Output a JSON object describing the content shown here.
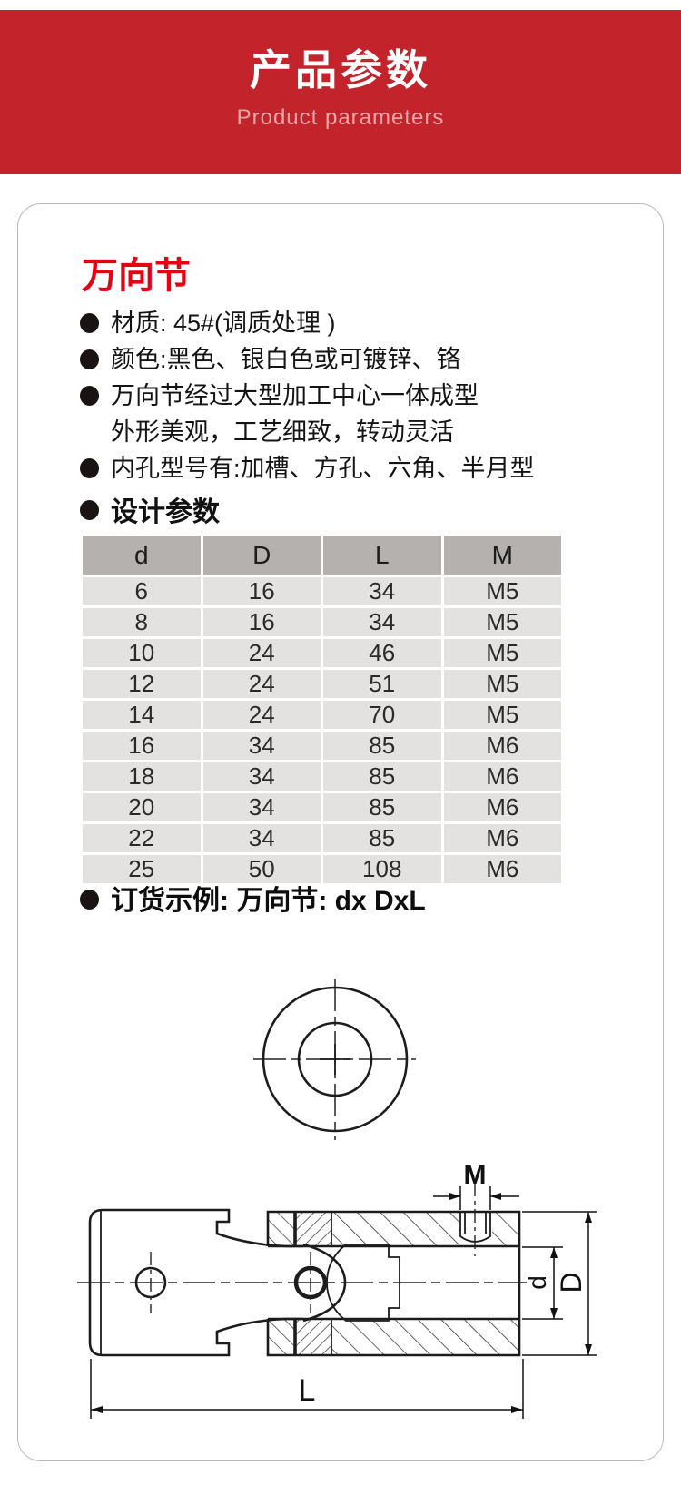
{
  "header": {
    "title": "产品参数",
    "subtitle": "Product parameters"
  },
  "card": {
    "title": "万向节",
    "features": [
      {
        "text": "材质: 45#(调质处理 )",
        "bullet": true
      },
      {
        "text": "颜色:黑色、银白色或可镀锌、铬",
        "bullet": true
      },
      {
        "text": "万向节经过大型加工中心一体成型",
        "bullet": true
      },
      {
        "text": "外形美观，工艺细致，转动灵活",
        "bullet": false
      },
      {
        "text": "内孔型号有:加槽、方孔、六角、半月型",
        "bullet": true
      }
    ],
    "design_heading": "设计参数",
    "table": {
      "headers": [
        "d",
        "D",
        "L",
        "M"
      ],
      "rows": [
        [
          "6",
          "16",
          "34",
          "M5"
        ],
        [
          "8",
          "16",
          "34",
          "M5"
        ],
        [
          "10",
          "24",
          "46",
          "M5"
        ],
        [
          "12",
          "24",
          "51",
          "M5"
        ],
        [
          "14",
          "24",
          "70",
          "M5"
        ],
        [
          "16",
          "34",
          "85",
          "M6"
        ],
        [
          "18",
          "34",
          "85",
          "M6"
        ],
        [
          "20",
          "34",
          "85",
          "M6"
        ],
        [
          "22",
          "34",
          "85",
          "M6"
        ],
        [
          "25",
          "50",
          "108",
          "M6"
        ]
      ]
    },
    "order_example": "订货示例: 万向节: dx DxL",
    "drawing_labels": {
      "m": "M",
      "d": "d",
      "big_d": "D",
      "l": "L"
    }
  },
  "colors": {
    "banner_red": "#c3242c",
    "title_red": "#e60014",
    "subtitle_pink": "#eca6a8",
    "table_header_bg": "#b4b1ae",
    "table_row_bg": "#e4e2e1",
    "drawing_line": "#1c1c1c"
  }
}
